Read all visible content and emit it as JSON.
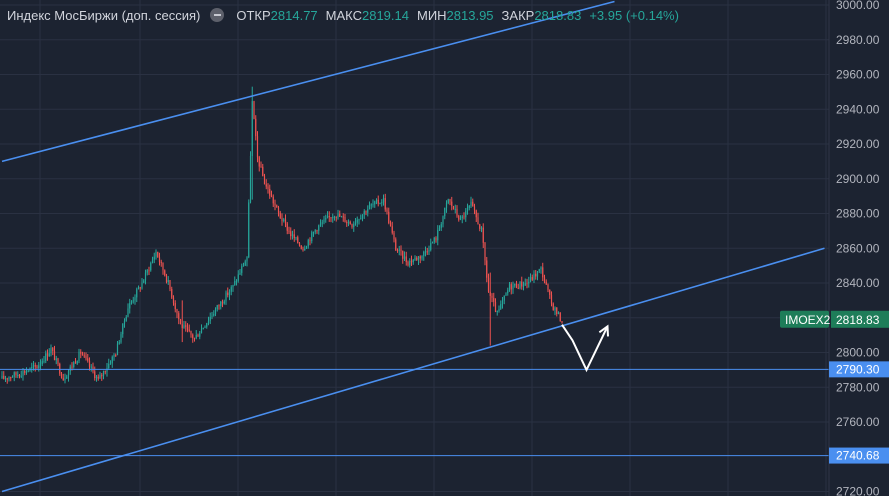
{
  "legend": {
    "title": "Индекс МосБиржи (доп. сессия)",
    "collapse_icon": "minus-circle-icon",
    "open_label": "ОТКР",
    "open_value": "2814.77",
    "high_label": "МАКС",
    "high_value": "2819.14",
    "low_label": "МИН",
    "low_value": "2813.95",
    "close_label": "ЗАКР",
    "close_value": "2818.83",
    "change": "+3.95 (+0.14%)"
  },
  "colors": {
    "background": "#1c2331",
    "grid": "#2a3142",
    "up": "#26a69a",
    "down": "#ef5350",
    "trendline": "#4a8ff0",
    "level_line": "#4a8ff0",
    "forecast": "#ffffff",
    "price_tag": "#1e7d59"
  },
  "chart_data": {
    "type": "candlestick",
    "symbol": "IMOEX2",
    "y_axis": {
      "position": "right",
      "range": [
        2720,
        3000
      ],
      "ticks": [
        "3000.00",
        "2980.00",
        "2960.00",
        "2940.00",
        "2920.00",
        "2900.00",
        "2880.00",
        "2860.00",
        "2840.00",
        "2820.00",
        "2800.00",
        "2780.00",
        "2760.00",
        "2720.00"
      ]
    },
    "last_price": "2818.83",
    "horizontal_levels": [
      "2790.30",
      "2740.68"
    ],
    "price_path": [
      {
        "i": 0,
        "v": 2785
      },
      {
        "i": 10,
        "v": 2788
      },
      {
        "i": 20,
        "v": 2792
      },
      {
        "i": 28,
        "v": 2802
      },
      {
        "i": 35,
        "v": 2785
      },
      {
        "i": 45,
        "v": 2800
      },
      {
        "i": 55,
        "v": 2784
      },
      {
        "i": 65,
        "v": 2800
      },
      {
        "i": 72,
        "v": 2826
      },
      {
        "i": 80,
        "v": 2840
      },
      {
        "i": 88,
        "v": 2858
      },
      {
        "i": 95,
        "v": 2840
      },
      {
        "i": 102,
        "v": 2816
      },
      {
        "i": 110,
        "v": 2808
      },
      {
        "i": 120,
        "v": 2822
      },
      {
        "i": 132,
        "v": 2838
      },
      {
        "i": 140,
        "v": 2855
      },
      {
        "i": 143,
        "v": 2944
      },
      {
        "i": 146,
        "v": 2912
      },
      {
        "i": 150,
        "v": 2898
      },
      {
        "i": 158,
        "v": 2880
      },
      {
        "i": 165,
        "v": 2868
      },
      {
        "i": 172,
        "v": 2860
      },
      {
        "i": 180,
        "v": 2872
      },
      {
        "i": 190,
        "v": 2880
      },
      {
        "i": 200,
        "v": 2874
      },
      {
        "i": 210,
        "v": 2884
      },
      {
        "i": 218,
        "v": 2888
      },
      {
        "i": 225,
        "v": 2860
      },
      {
        "i": 232,
        "v": 2852
      },
      {
        "i": 240,
        "v": 2856
      },
      {
        "i": 248,
        "v": 2866
      },
      {
        "i": 255,
        "v": 2888
      },
      {
        "i": 262,
        "v": 2876
      },
      {
        "i": 268,
        "v": 2885
      },
      {
        "i": 274,
        "v": 2870
      },
      {
        "i": 278,
        "v": 2835
      },
      {
        "i": 283,
        "v": 2822
      },
      {
        "i": 290,
        "v": 2838
      },
      {
        "i": 300,
        "v": 2840
      },
      {
        "i": 308,
        "v": 2848
      },
      {
        "i": 314,
        "v": 2828
      },
      {
        "i": 320,
        "v": 2818
      }
    ],
    "key_wicks": [
      {
        "i": 143,
        "high": 2953,
        "low": 2888
      },
      {
        "i": 279,
        "high": 2846,
        "low": 2804
      },
      {
        "i": 103,
        "high": 2830,
        "low": 2806
      }
    ],
    "trend_channel": {
      "upper": [
        {
          "i": 0,
          "v": 2910
        },
        {
          "i": 350,
          "v": 3002
        }
      ],
      "lower": [
        {
          "i": 0,
          "v": 2720
        },
        {
          "i": 470,
          "v": 2860
        }
      ]
    },
    "forecast_path": [
      {
        "i": 320,
        "v": 2816
      },
      {
        "i": 326,
        "v": 2807
      },
      {
        "i": 334,
        "v": 2790
      },
      {
        "i": 346,
        "v": 2815
      }
    ]
  }
}
